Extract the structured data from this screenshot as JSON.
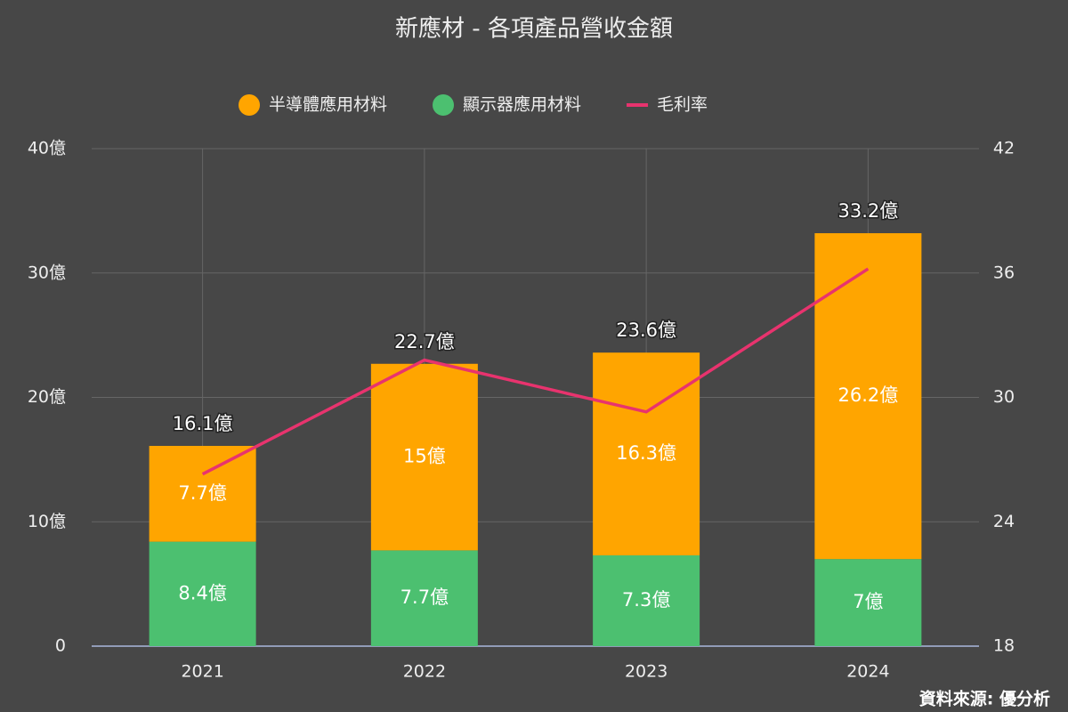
{
  "chart_data": {
    "type": "bar",
    "title": "新應材 - 各項產品營收金額",
    "categories": [
      "2021",
      "2022",
      "2023",
      "2024"
    ],
    "series": [
      {
        "name": "半導體應用材料",
        "type": "bar",
        "color": "#ffa500",
        "values": [
          7.7,
          15,
          16.3,
          26.2
        ],
        "value_labels": [
          "7.7億",
          "15億",
          "16.3億",
          "26.2億"
        ]
      },
      {
        "name": "顯示器應用材料",
        "type": "bar",
        "color": "#4cc070",
        "values": [
          8.4,
          7.7,
          7.3,
          7
        ],
        "value_labels": [
          "8.4億",
          "7.7億",
          "7.3億",
          "7億"
        ]
      },
      {
        "name": "毛利率",
        "type": "line",
        "axis": "y2",
        "color": "#e8336e",
        "values": [
          26.3,
          31.8,
          29.3,
          36.2
        ]
      }
    ],
    "totals": [
      16.1,
      22.7,
      23.6,
      33.2
    ],
    "total_labels": [
      "16.1億",
      "22.7億",
      "23.6億",
      "33.2億"
    ],
    "ylim": [
      0,
      40
    ],
    "yticks": [
      0,
      {
        "value": 10,
        "label": "10億"
      },
      {
        "value": 20,
        "label": "20億"
      },
      {
        "value": 30,
        "label": "30億"
      },
      {
        "value": 40,
        "label": "40億"
      }
    ],
    "y2lim": [
      18,
      42
    ],
    "y2ticks": [
      18,
      24,
      30,
      36,
      42
    ],
    "grid": true,
    "legend": "top",
    "source": "資料來源: 優分析"
  }
}
